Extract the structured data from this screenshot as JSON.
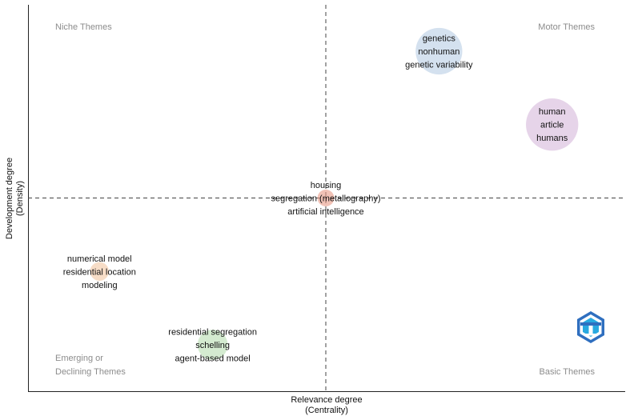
{
  "chart_data": {
    "type": "scatter",
    "xlabel": [
      "Relevance degree",
      "(Centrality)"
    ],
    "ylabel": [
      "Development degree",
      "(Density)"
    ],
    "xlim": [
      0,
      1
    ],
    "ylim": [
      0,
      1
    ],
    "reference_lines": {
      "x": 0.5,
      "y": 0.5
    },
    "quadrants": {
      "top_left": [
        "Niche Themes"
      ],
      "top_right": [
        "Motor Themes"
      ],
      "bottom_left": [
        "Emerging or",
        "Declining Themes"
      ],
      "bottom_right": [
        "Basic Themes"
      ]
    },
    "clusters": [
      {
        "labels": [
          "genetics",
          "nonhuman",
          "genetic variability"
        ],
        "x": 0.69,
        "y": 0.88,
        "size": 0.62,
        "color": "#b7cde4"
      },
      {
        "labels": [
          "human",
          "article",
          "humans"
        ],
        "x": 0.88,
        "y": 0.69,
        "size": 0.78,
        "color": "#d6b8da"
      },
      {
        "labels": [
          "housing",
          "segregation (metallography)",
          "artificial intelligence"
        ],
        "x": 0.5,
        "y": 0.5,
        "size": 0.08,
        "color": "#e79a86"
      },
      {
        "labels": [
          "numerical model",
          "residential location",
          "modeling"
        ],
        "x": 0.12,
        "y": 0.31,
        "size": 0.1,
        "color": "#f1c7a2"
      },
      {
        "labels": [
          "residential segregation",
          "schelling",
          "agent-based model"
        ],
        "x": 0.31,
        "y": 0.12,
        "size": 0.26,
        "color": "#b7ddb0"
      }
    ],
    "grid": false,
    "logo": {
      "name": "bibliometrix-logo",
      "colors": [
        "#2f6fbf",
        "#28a9e0"
      ]
    }
  }
}
